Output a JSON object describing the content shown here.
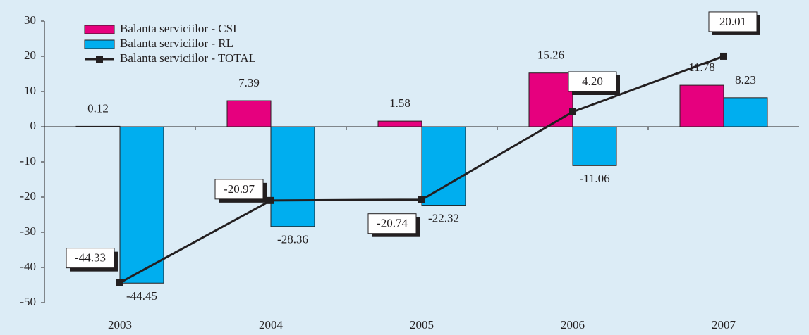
{
  "chart_data": {
    "type": "bar-line",
    "categories": [
      "2003",
      "2004",
      "2005",
      "2006",
      "2007"
    ],
    "series": [
      {
        "name": "Balanta serviciilor - CSI",
        "type": "bar",
        "color": "#e6007e",
        "values": [
          0.12,
          7.39,
          1.58,
          15.26,
          11.78
        ]
      },
      {
        "name": "Balanta serviciilor - RL",
        "type": "bar",
        "color": "#00aeef",
        "values": [
          -44.45,
          -28.36,
          -22.32,
          -11.06,
          8.23
        ]
      },
      {
        "name": "Balanta serviciilor - TOTAL",
        "type": "line",
        "color": "#231f20",
        "values": [
          -44.33,
          -20.97,
          -20.74,
          4.2,
          20.01
        ],
        "value_labels": [
          "-44.33",
          "-20.97",
          "-20.74",
          "4.20",
          "20.01"
        ]
      }
    ],
    "ylim": [
      -50,
      30
    ],
    "yticks": [
      -50,
      -40,
      -30,
      -20,
      -10,
      0,
      10,
      20,
      30
    ],
    "legend": "top-left"
  }
}
